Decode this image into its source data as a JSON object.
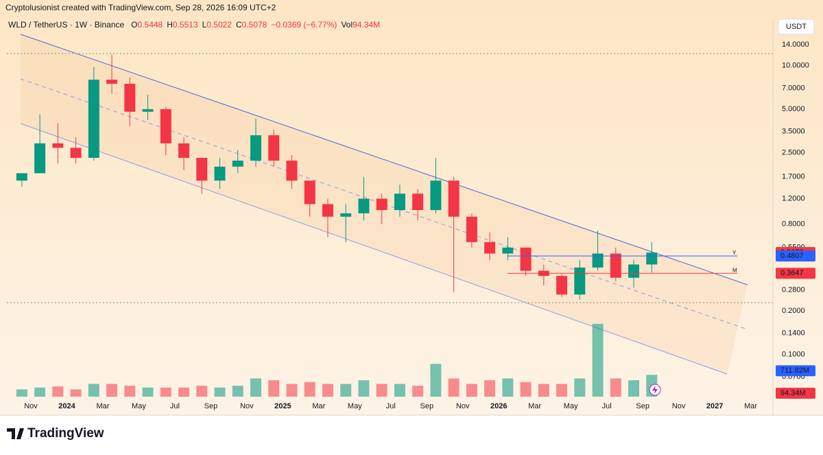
{
  "header": {
    "title": "Cryptolusionist created with TradingView.com, Sep 28, 2026 16:09 UTC+2",
    "symbol": "WLD / TetherUS · 1W · Binance",
    "ohlc_legend": [
      {
        "key": "O",
        "value": 0.5448
      },
      {
        "key": "H",
        "value": 0.5513
      },
      {
        "key": "L",
        "value": 0.5022
      },
      {
        "key": "C",
        "value": 0.5078
      }
    ],
    "change": "−0.0369 (−6.77%)",
    "vol_key": "Vol",
    "vol_value": "94.34M",
    "currency": "USDT"
  },
  "footer": {
    "logo": "TradingView"
  },
  "chart_data": {
    "type": "candlestick",
    "log": true,
    "categories": [
      null,
      "Nov",
      null,
      "2024",
      null,
      "Mar",
      null,
      "May",
      null,
      "Jul",
      null,
      "Sep",
      null,
      "Nov",
      null,
      "2025",
      null,
      "Mar",
      null,
      "May",
      null,
      "Jul",
      null,
      "Sep",
      null,
      "Nov",
      null,
      "2026",
      null,
      "Mar",
      null,
      "May",
      null,
      "Jul",
      null,
      "Sep",
      null,
      "Nov",
      null,
      "2027",
      null,
      "Mar"
    ],
    "open": [
      1.6,
      1.8,
      2.9,
      2.7,
      2.3,
      8.0,
      7.5,
      4.8,
      5.0,
      2.9,
      2.3,
      1.6,
      2.0,
      2.2,
      3.3,
      2.2,
      1.6,
      1.1,
      0.9,
      0.95,
      1.2,
      1.0,
      1.3,
      1.0,
      1.6,
      0.9,
      0.6,
      0.5,
      0.55,
      0.38,
      0.35,
      0.26,
      0.4,
      0.5,
      0.34,
      0.42,
      null,
      null,
      null,
      null,
      null,
      null
    ],
    "high": [
      1.8,
      4.6,
      4.0,
      3.2,
      9.8,
      11.9,
      8.3,
      6.3,
      5.2,
      3.2,
      2.3,
      2.3,
      2.6,
      4.3,
      3.6,
      2.4,
      1.6,
      1.2,
      1.1,
      1.7,
      1.3,
      1.5,
      1.4,
      2.3,
      1.7,
      0.95,
      0.7,
      0.65,
      0.55,
      0.42,
      0.36,
      0.45,
      0.72,
      0.55,
      0.45,
      0.6,
      null,
      null,
      null,
      null,
      null,
      null
    ],
    "low": [
      1.45,
      1.8,
      2.1,
      2.1,
      2.2,
      6.4,
      3.8,
      4.2,
      2.4,
      1.9,
      1.3,
      1.4,
      1.8,
      2.0,
      2.0,
      1.4,
      0.9,
      0.65,
      0.6,
      0.85,
      0.8,
      0.9,
      0.85,
      0.95,
      0.27,
      0.55,
      0.45,
      0.45,
      0.35,
      0.3,
      0.25,
      0.24,
      0.38,
      0.32,
      0.29,
      0.37,
      null,
      null,
      null,
      null,
      null,
      null
    ],
    "close": [
      1.8,
      2.9,
      2.7,
      2.3,
      8.0,
      7.5,
      4.8,
      5.0,
      2.9,
      2.3,
      1.6,
      2.0,
      2.2,
      3.3,
      2.2,
      1.6,
      1.1,
      0.9,
      0.95,
      1.2,
      1.0,
      1.3,
      1.0,
      1.6,
      0.9,
      0.6,
      0.5,
      0.55,
      0.38,
      0.35,
      0.26,
      0.4,
      0.5,
      0.34,
      0.42,
      0.5078,
      null,
      null,
      null,
      null,
      null,
      null
    ],
    "volume": [
      200,
      250,
      280,
      200,
      350,
      350,
      300,
      250,
      250,
      250,
      300,
      250,
      300,
      500,
      450,
      350,
      400,
      350,
      350,
      450,
      350,
      350,
      300,
      900,
      500,
      350,
      450,
      500,
      400,
      350,
      350,
      500,
      2000,
      500,
      450,
      600,
      null,
      null,
      null,
      null,
      null,
      null
    ],
    "up_color": "#089981",
    "down_color": "#f23645",
    "ylim": [
      0.051,
      21
    ],
    "y2lim": [
      0,
      2600
    ],
    "yticks": [
      {
        "value": 14,
        "label": "14.0000"
      },
      {
        "value": 10,
        "label": "10.0000"
      },
      {
        "value": 7,
        "label": "7.0000"
      },
      {
        "value": 5,
        "label": "5.0000"
      },
      {
        "value": 3.5,
        "label": "3.5000"
      },
      {
        "value": 2.5,
        "label": "2.5000"
      },
      {
        "value": 1.7,
        "label": "1.7000"
      },
      {
        "value": 1.2,
        "label": "1.2000"
      },
      {
        "value": 0.8,
        "label": "0.8000"
      },
      {
        "value": 0.55,
        "label": "0.5500"
      },
      {
        "value": 0.28,
        "label": "0.2800"
      },
      {
        "value": 0.2,
        "label": "0.2000"
      },
      {
        "value": 0.14,
        "label": "0.1400"
      },
      {
        "value": 0.1,
        "label": "0.1000"
      },
      {
        "value": 0.07,
        "label": "0.0700"
      }
    ],
    "price_markers": [
      {
        "value": 0.5078,
        "color": "#f23645"
      },
      {
        "value": 0.4807,
        "color": "#2962ff",
        "line_label": "Y"
      },
      {
        "value": 0.3647,
        "color": "#f23645",
        "line_label": "M"
      }
    ],
    "volume_markers": [
      {
        "value": 711.82,
        "label": "711.82M",
        "color": "#2962ff"
      },
      {
        "value": 94.34,
        "label": "94.34M",
        "color": "#f23645"
      }
    ]
  }
}
